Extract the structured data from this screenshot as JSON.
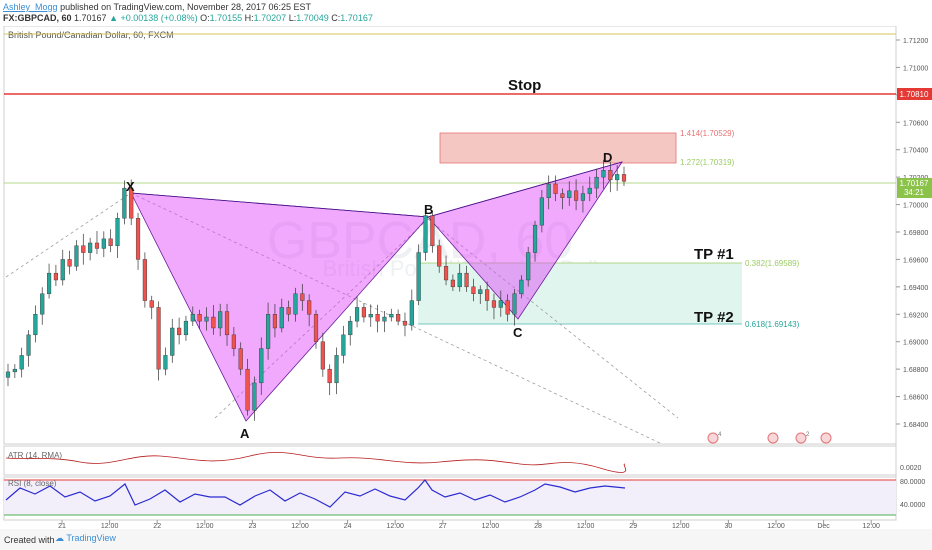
{
  "header": {
    "author": "Ashley_Mogg",
    "published": "published on TradingView.com, November 28, 2017 06:25 EST",
    "symbol": "FX:GBPCAD, 60",
    "last": "1.70167",
    "change": "▲ +0.00138 (+0.08%)",
    "o_label": "O:",
    "o_value": "1.70155",
    "h_label": "H:",
    "h_value": "1.70207",
    "l_label": "L:",
    "l_value": "1.70049",
    "c_label": "C:",
    "c_value": "1.70167"
  },
  "chart_title": "British Pound/Canadian Dollar, 60, FXCM",
  "watermark": "GBPCAD, 60",
  "watermark2": "British Pound/Canadian Dollar",
  "labels": {
    "stop": "Stop",
    "tp1": "TP #1",
    "tp2": "TP #2",
    "x": "X",
    "a": "A",
    "b": "B",
    "c": "C",
    "d": "D",
    "fib1414": "1.414(1.70529)",
    "fib1272": "1.272(1.70319)",
    "fib0382": "0.382(1.69589)",
    "fib0618": "0.618(1.69143)"
  },
  "price_badges": {
    "stop": "1.70810",
    "last": "1.70167",
    "countdown": "34:21"
  },
  "indicators": {
    "atr": {
      "label": "ATR (14, RMA)",
      "tick": "0.0020"
    },
    "rsi": {
      "label": "RSI (8, close)",
      "ticks": [
        "80.0000",
        "40.0000"
      ]
    }
  },
  "footer": {
    "created": "Created with",
    "brand": "TradingView"
  },
  "colors": {
    "up": "#26a69a",
    "down": "#ef5350",
    "pattern": "#e040fb",
    "stop": "#e53935",
    "tp": "#26a69a",
    "rsi": "#2b2bd1",
    "atr": "#b71c1c"
  },
  "chart_data": {
    "type": "candlestick",
    "title": "British Pound/Canadian Dollar, 60, FXCM",
    "xlabel": "",
    "ylabel": "",
    "ylim": [
      1.6825,
      1.713
    ],
    "y_ticks": [
      1.712,
      1.71,
      1.708,
      1.706,
      1.704,
      1.702,
      1.7,
      1.698,
      1.696,
      1.694,
      1.692,
      1.69,
      1.688,
      1.686,
      1.684
    ],
    "x_ticks": [
      "21",
      "12:00",
      "22",
      "12:00",
      "23",
      "12:00",
      "24",
      "12:00",
      "27",
      "12:00",
      "28",
      "12:00",
      "29",
      "12:00",
      "30",
      "12:00",
      "Dec",
      "12:00"
    ],
    "levels": {
      "stop": 1.7081,
      "last": 1.70167,
      "top_line": 1.7125,
      "fib_1414": 1.70529,
      "fib_1272": 1.70319,
      "fib_0382": 1.69589,
      "fib_0618": 1.69143
    },
    "pattern_points": [
      {
        "label": "X",
        "price": 1.7012
      },
      {
        "label": "A",
        "price": 1.6847
      },
      {
        "label": "B",
        "price": 1.6992
      },
      {
        "label": "C",
        "price": 1.6918
      },
      {
        "label": "D",
        "price": 1.703
      }
    ],
    "close_path": [
      1.6878,
      1.688,
      1.689,
      1.6905,
      1.692,
      1.6935,
      1.695,
      1.6945,
      1.696,
      1.6955,
      1.697,
      1.6965,
      1.6972,
      1.6968,
      1.6975,
      1.697,
      1.699,
      1.7012,
      1.699,
      1.696,
      1.693,
      1.6925,
      1.688,
      1.689,
      1.691,
      1.6905,
      1.6915,
      1.692,
      1.6915,
      1.6918,
      1.691,
      1.6922,
      1.6905,
      1.6895,
      1.688,
      1.685,
      1.687,
      1.6895,
      1.692,
      1.691,
      1.6925,
      1.692,
      1.6935,
      1.693,
      1.692,
      1.69,
      1.688,
      1.687,
      1.689,
      1.6905,
      1.6915,
      1.6925,
      1.6918,
      1.692,
      1.6915,
      1.6918,
      1.692,
      1.6915,
      1.6912,
      1.693,
      1.6965,
      1.6992,
      1.697,
      1.6955,
      1.6945,
      1.694,
      1.695,
      1.694,
      1.6935,
      1.6938,
      1.693,
      1.6925,
      1.693,
      1.692,
      1.6935,
      1.6945,
      1.6965,
      1.6985,
      1.7005,
      1.7015,
      1.7008,
      1.7005,
      1.701,
      1.7003,
      1.7008,
      1.7012,
      1.702,
      1.7025,
      1.7018,
      1.7022,
      1.7017
    ],
    "rsi": {
      "upper": 80,
      "lower": 30
    }
  }
}
